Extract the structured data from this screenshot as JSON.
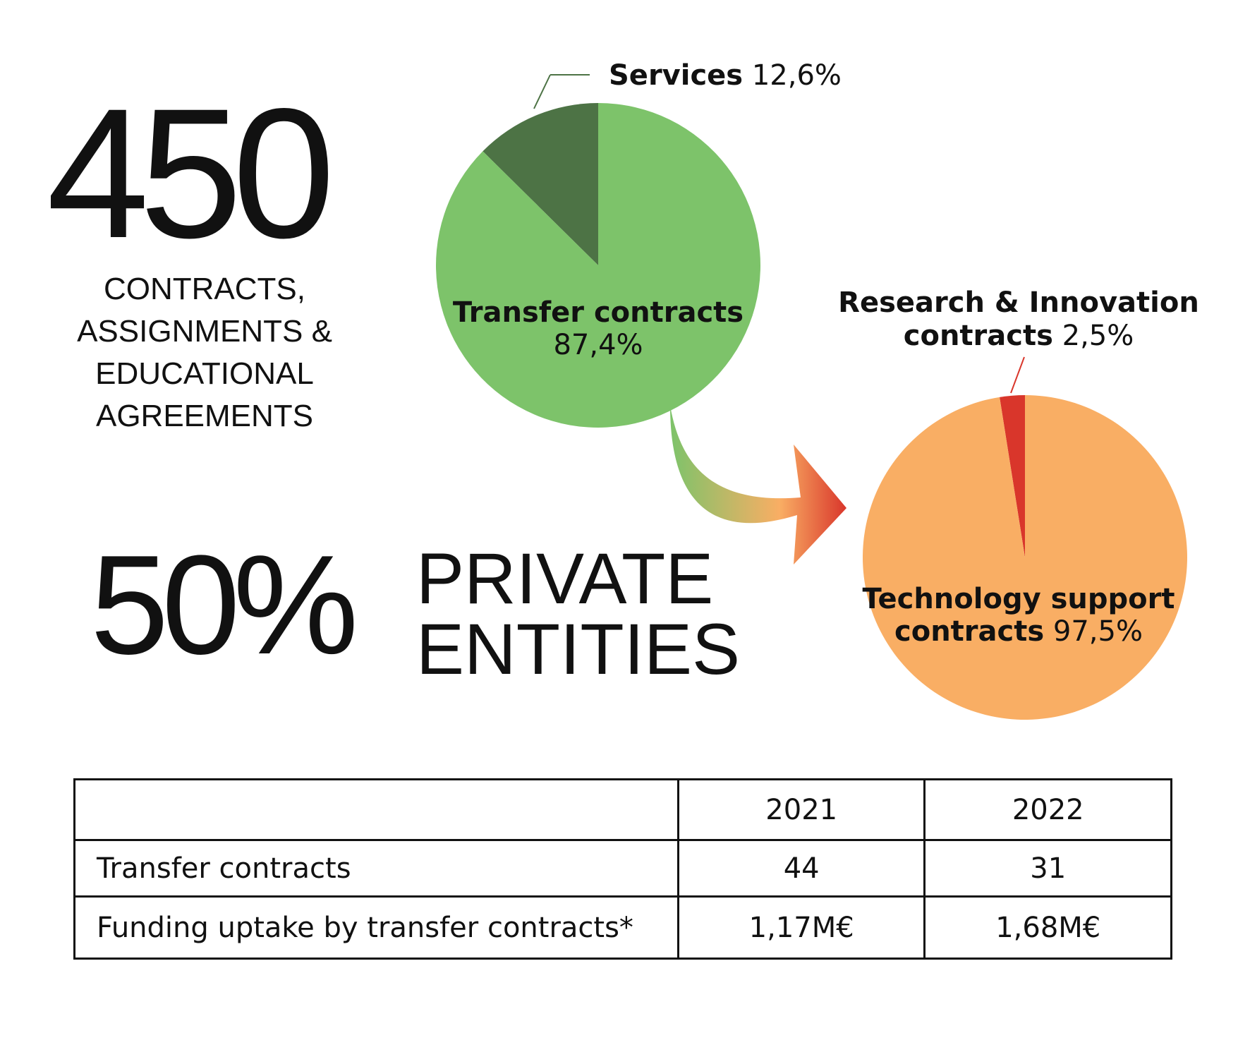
{
  "summary": {
    "big_number": "450",
    "caption_lines": [
      "CONTRACTS,",
      "ASSIGNMENTS &",
      "EDUCATIONAL",
      "AGREEMENTS"
    ],
    "percent": "50%",
    "percent_label_lines": [
      "PRIVATE",
      "ENTITIES"
    ]
  },
  "colors": {
    "transfer": "#7dc36a",
    "services": "#4d7345",
    "tech_support": "#f9ae64",
    "research": "#d9362b",
    "arrow_start": "#7dc36a",
    "arrow_mid": "#f9ae64",
    "arrow_end": "#d9362b"
  },
  "chart_data": [
    {
      "type": "pie",
      "title": "",
      "slices": [
        {
          "name": "Services",
          "value": 12.6,
          "value_label": "12,6%",
          "color": "#4d7345"
        },
        {
          "name": "Transfer contracts",
          "value": 87.4,
          "value_label": "87,4%",
          "color": "#7dc36a"
        }
      ]
    },
    {
      "type": "pie",
      "title": "",
      "slices": [
        {
          "name_lines": [
            "Research & Innovation",
            "contracts"
          ],
          "value": 2.5,
          "value_label": "2,5%",
          "color": "#d9362b"
        },
        {
          "name_lines": [
            "Technology support",
            "contracts"
          ],
          "value": 97.5,
          "value_label": "97,5%",
          "color": "#f9ae64"
        }
      ]
    }
  ],
  "table": {
    "headers": [
      "",
      "2021",
      "2022"
    ],
    "rows": [
      [
        "Transfer contracts",
        "44",
        "31"
      ],
      [
        "Funding uptake by transfer contracts*",
        "1,17M€",
        "1,68M€"
      ]
    ]
  }
}
